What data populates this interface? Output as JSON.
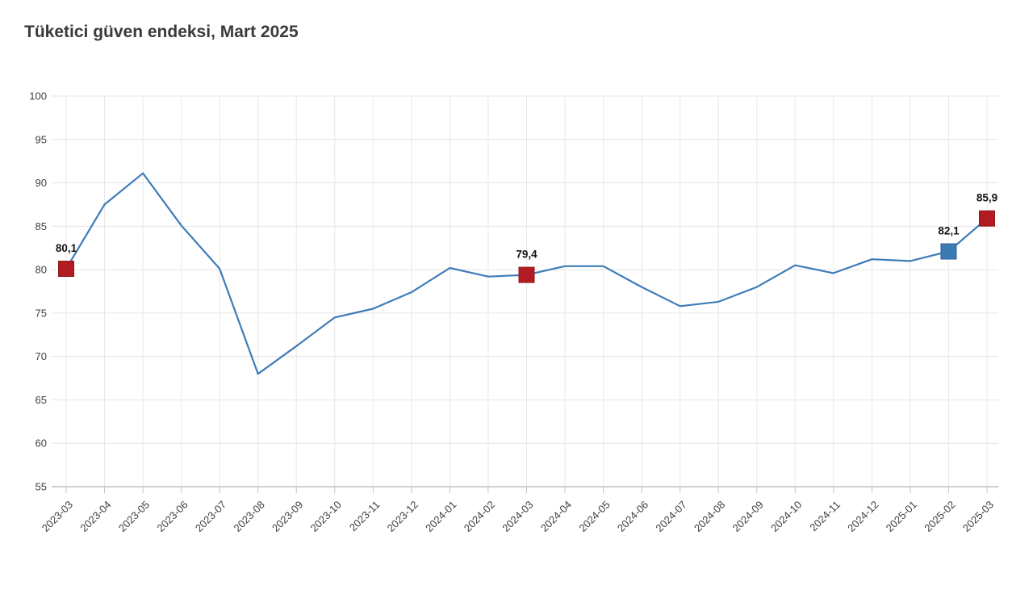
{
  "page": {
    "title": "Tüketici güven endeksi, Mart 2025"
  },
  "chart_data": {
    "type": "line",
    "title": "Tüketici güven endeksi, Mart 2025",
    "series_name": "Tüketici güven endeksi",
    "categories": [
      "2023-03",
      "2023-04",
      "2023-05",
      "2023-06",
      "2023-07",
      "2023-08",
      "2023-09",
      "2023-10",
      "2023-11",
      "2023-12",
      "2024-01",
      "2024-02",
      "2024-03",
      "2024-04",
      "2024-05",
      "2024-06",
      "2024-07",
      "2024-08",
      "2024-09",
      "2024-10",
      "2024-11",
      "2024-12",
      "2025-01",
      "2025-02",
      "2025-03"
    ],
    "values": [
      80.1,
      87.5,
      91.1,
      85.1,
      80.1,
      68.0,
      71.2,
      74.5,
      75.5,
      77.4,
      80.2,
      79.2,
      79.4,
      80.4,
      80.4,
      78.0,
      75.8,
      76.3,
      78.0,
      80.5,
      79.6,
      81.2,
      81.0,
      82.1,
      85.9
    ],
    "xlabel": "",
    "ylabel": "",
    "ylim": [
      55,
      100
    ],
    "yticks": [
      55,
      60,
      65,
      70,
      75,
      80,
      85,
      90,
      95,
      100
    ],
    "grid": true,
    "legend_position": "none",
    "annotations": [
      {
        "index": 0,
        "category": "2023-03",
        "value": 80.1,
        "label": "80,1",
        "marker_color": "#b11c22",
        "marker_stroke": "#93151b"
      },
      {
        "index": 12,
        "category": "2024-03",
        "value": 79.4,
        "label": "79,4",
        "marker_color": "#b11c22",
        "marker_stroke": "#93151b"
      },
      {
        "index": 23,
        "category": "2025-02",
        "value": 82.1,
        "label": "82,1",
        "marker_color": "#3c7ab5",
        "marker_stroke": "#30629a"
      },
      {
        "index": 24,
        "category": "2025-03",
        "value": 85.9,
        "label": "85,9",
        "marker_color": "#b11c22",
        "marker_stroke": "#93151b"
      }
    ],
    "colors": {
      "line": "#3e7cb8",
      "grid_horizontal": "#e5e5e5",
      "grid_vertical": "#e8e8e8",
      "axis_line": "#b0b0b0",
      "axis_tick": "#c4c4c4",
      "tick_label": "#3f3f3f",
      "annotation_text": "#141414",
      "title_text": "#3a3a3a",
      "background": "#ffffff"
    }
  }
}
